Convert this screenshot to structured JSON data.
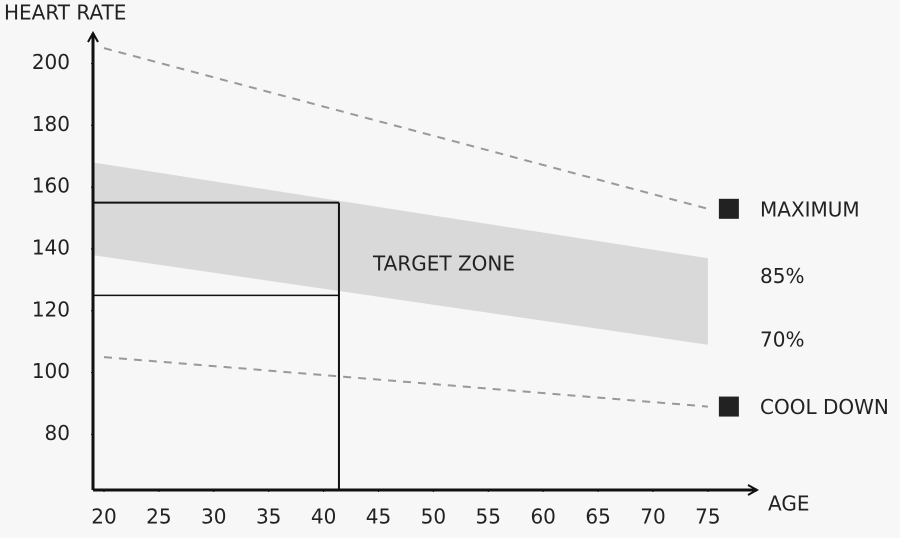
{
  "chart_data": {
    "type": "line",
    "y_label": "HEART RATE",
    "x_label": "AGE",
    "xlim": [
      19,
      79
    ],
    "ylim": [
      62,
      209
    ],
    "xticks": [
      20,
      25,
      30,
      35,
      40,
      45,
      50,
      55,
      60,
      65,
      70,
      75
    ],
    "yticks": [
      80,
      100,
      120,
      140,
      160,
      180,
      200
    ],
    "x": [
      20,
      75
    ],
    "series": [
      {
        "name": "MAXIMUM",
        "color": "#999999",
        "values": [
          205,
          153
        ]
      },
      {
        "name": "COOL DOWN",
        "color": "#999999",
        "values": [
          105,
          89
        ]
      }
    ],
    "band": {
      "name": "TARGET ZONE",
      "color": "#d9d9d9",
      "x": [
        19,
        75
      ],
      "upper_label": "85%",
      "upper": [
        168,
        137
      ],
      "lower_label": "70%",
      "lower": [
        138,
        109
      ]
    },
    "example": {
      "age": 41.4,
      "upper": 155,
      "lower": 125
    }
  }
}
